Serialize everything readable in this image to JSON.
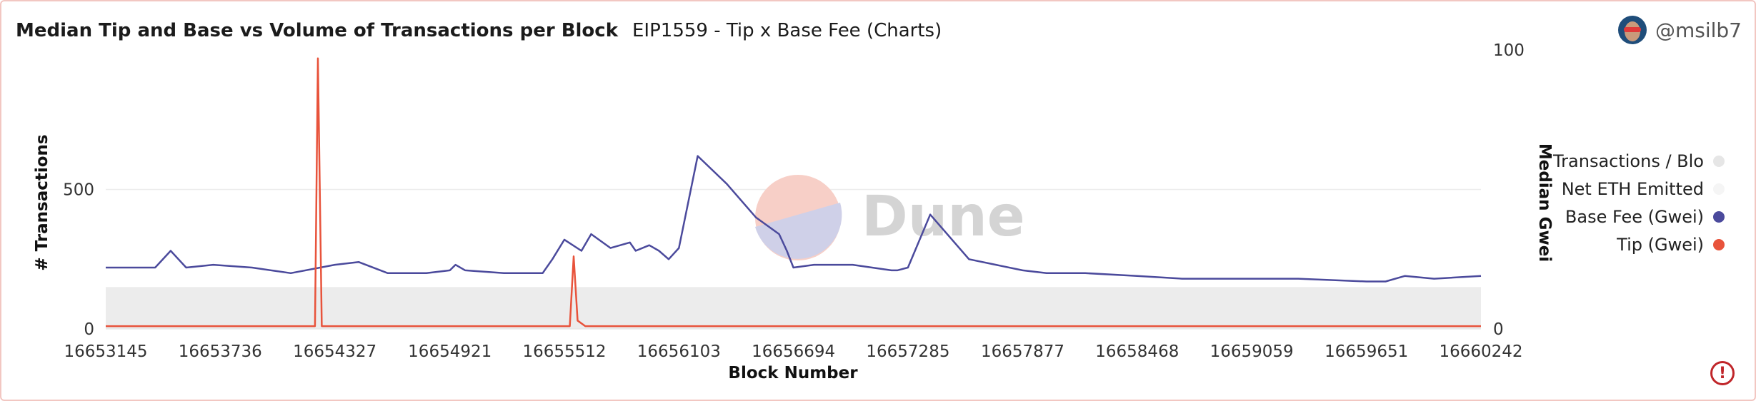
{
  "header": {
    "title": "Median Tip and Base vs Volume of Transactions per Block",
    "subtitle": "EIP1559 - Tip x Base Fee (Charts)"
  },
  "user": {
    "handle": "@msilb7",
    "avatar_icon": "user-avatar"
  },
  "watermark": {
    "text": "Dune"
  },
  "alert": {
    "icon": "exclamation-circle-icon",
    "glyph": "!"
  },
  "chart_data": {
    "type": "line",
    "xlabel": "Block Number",
    "ylabel_left": "# Transactions",
    "ylabel_right": "Median Gwei",
    "x_ticks": [
      "16653145",
      "16653736",
      "16654327",
      "16654921",
      "16655512",
      "16656103",
      "16656694",
      "16657285",
      "16657877",
      "16658468",
      "16659059",
      "16659651",
      "16660242"
    ],
    "xlim": [
      16653145,
      16660242
    ],
    "y_left_ticks": [
      "0",
      "500"
    ],
    "y_left_lim": [
      0,
      1000
    ],
    "y_right_ticks": [
      "0",
      "100"
    ],
    "y_right_lim": [
      0,
      100
    ],
    "legend_position": "right",
    "grid": true,
    "series": [
      {
        "name": "Transactions / Blo",
        "axis": "left",
        "type": "area",
        "color": "#e6e6e6",
        "x": [
          16653145,
          16660242
        ],
        "values": [
          150,
          150
        ]
      },
      {
        "name": "Net ETH Emitted",
        "axis": "left",
        "type": "line",
        "color": "#f5f5f5",
        "x": [],
        "values": []
      },
      {
        "name": "Base Fee (Gwei)",
        "axis": "right",
        "type": "line",
        "color": "#4b4a9c",
        "x": [
          16653145,
          16653400,
          16653480,
          16653560,
          16653700,
          16653900,
          16654100,
          16654327,
          16654450,
          16654600,
          16654800,
          16654921,
          16654950,
          16655000,
          16655200,
          16655400,
          16655450,
          16655512,
          16655600,
          16655650,
          16655750,
          16655850,
          16655880,
          16655950,
          16656000,
          16656050,
          16656103,
          16656200,
          16656350,
          16656500,
          16656620,
          16656660,
          16656694,
          16656800,
          16657000,
          16657200,
          16657230,
          16657285,
          16657400,
          16657600,
          16657877,
          16658000,
          16658200,
          16658468,
          16658700,
          16659059,
          16659300,
          16659651,
          16659700,
          16659750,
          16659850,
          16660000,
          16660242
        ],
        "values": [
          22,
          22,
          28,
          22,
          23,
          22,
          20,
          23,
          24,
          20,
          20,
          21,
          23,
          21,
          20,
          20,
          25,
          32,
          28,
          34,
          29,
          31,
          28,
          30,
          28,
          25,
          29,
          62,
          52,
          40,
          34,
          28,
          22,
          23,
          23,
          21,
          21,
          22,
          41,
          25,
          21,
          20,
          20,
          19,
          18,
          18,
          18,
          17,
          17,
          17,
          19,
          18,
          19
        ]
      },
      {
        "name": "Tip (Gwei)",
        "axis": "right",
        "type": "line",
        "color": "#e8533b",
        "x": [
          16653145,
          16653600,
          16654200,
          16654225,
          16654240,
          16654260,
          16654600,
          16655000,
          16655500,
          16655540,
          16655560,
          16655580,
          16655620,
          16656000,
          16657000,
          16657500,
          16660242
        ],
        "values": [
          1,
          1,
          1,
          1,
          97,
          1,
          1,
          1,
          1,
          1,
          26,
          3,
          1,
          1,
          1,
          1,
          1
        ]
      }
    ]
  }
}
